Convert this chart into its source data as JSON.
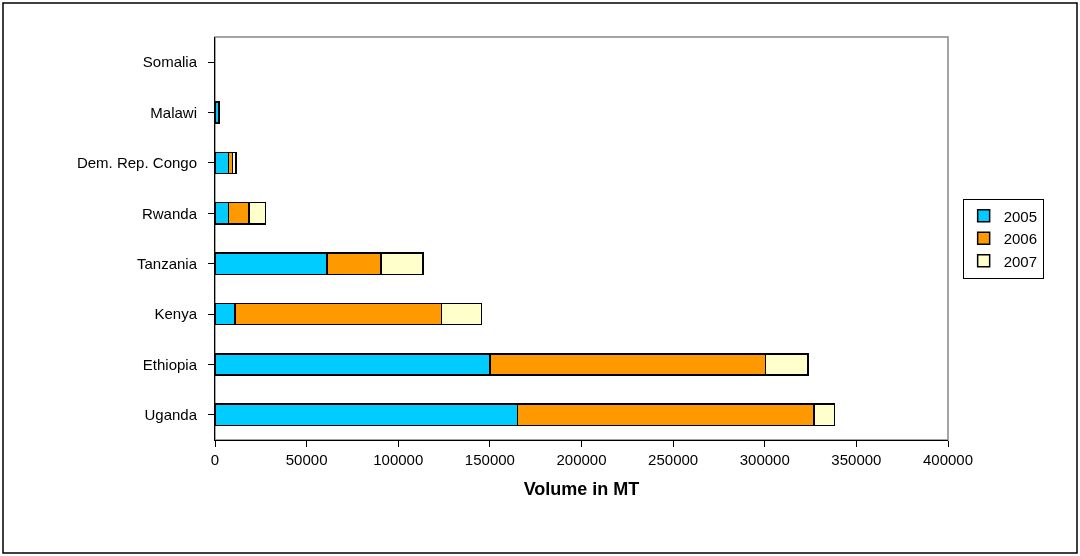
{
  "chart_data": {
    "type": "bar",
    "orientation": "horizontal",
    "stacked": true,
    "xlabel": "Volume in MT",
    "categories": [
      "Somalia",
      "Malawi",
      "Dem. Rep. Congo",
      "Rwanda",
      "Tanzania",
      "Kenya",
      "Ethiopia",
      "Uganda"
    ],
    "series": [
      {
        "name": "2005",
        "color": "#00ccff",
        "values": [
          null,
          2300,
          7500,
          7500,
          61000,
          11000,
          150000,
          165000
        ]
      },
      {
        "name": "2006",
        "color": "#ff9900",
        "values": [
          null,
          null,
          2000,
          11000,
          29500,
          112500,
          150500,
          162000
        ]
      },
      {
        "name": "2007",
        "color": "#ffffcc",
        "values": [
          null,
          null,
          2000,
          9000,
          23000,
          22000,
          23000,
          11000
        ]
      }
    ],
    "xlim": [
      0,
      400000
    ],
    "xticks": [
      0,
      50000,
      100000,
      150000,
      200000,
      250000,
      300000,
      350000,
      400000
    ],
    "grid": false,
    "legend": "right"
  }
}
